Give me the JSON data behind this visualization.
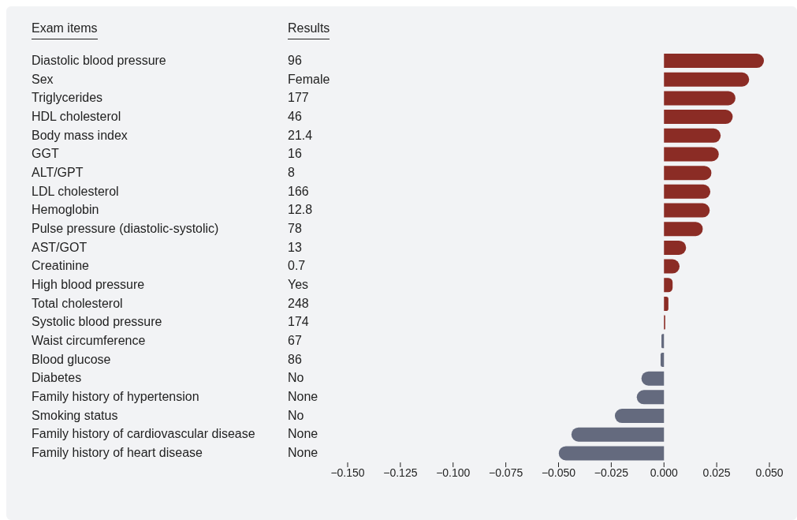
{
  "chart_data": {
    "type": "bar",
    "orientation": "horizontal",
    "ylabel": "Exam items",
    "y2label": "Results",
    "categories": [
      "Diastolic blood pressure",
      "Sex",
      "Triglycerides",
      "HDL cholesterol",
      "Body mass index",
      "GGT",
      "ALT/GPT",
      "LDL cholesterol",
      "Hemoglobin",
      "Pulse pressure (diastolic-systolic)",
      "AST/GOT",
      "Creatinine",
      "High blood pressure",
      "Total cholesterol",
      "Systolic blood pressure",
      "Waist circumference",
      "Blood glucose",
      "Diabetes",
      "Family history of hypertension",
      "Smoking status",
      "Family history of cardiovascular disease",
      "Family history of heart disease"
    ],
    "y2_categories": [
      "96",
      "Female",
      "177",
      "46",
      "21.4",
      "16",
      "8",
      "166",
      "12.8",
      "78",
      "13",
      "0.7",
      "Yes",
      "248",
      "174",
      "67",
      "86",
      "No",
      "None",
      "No",
      "None",
      "None"
    ],
    "values": [
      0.0474,
      0.0404,
      0.0339,
      0.0326,
      0.0269,
      0.026,
      0.0225,
      0.022,
      0.0217,
      0.0184,
      0.0105,
      0.0074,
      0.0041,
      0.0021,
      0.0006,
      -0.0012,
      -0.0016,
      -0.0107,
      -0.0129,
      -0.0233,
      -0.0439,
      -0.0499
    ],
    "colors": [
      "#8b2c25",
      "#8b2c25",
      "#8b2c25",
      "#8b2c25",
      "#8b2c25",
      "#8b2c25",
      "#8b2c25",
      "#8b2c25",
      "#8b2c25",
      "#8b2c25",
      "#8b2c25",
      "#8b2c25",
      "#8b2c25",
      "#8b2c25",
      "#8b2c25",
      "#646a7e",
      "#646a7e",
      "#646a7e",
      "#646a7e",
      "#646a7e",
      "#646a7e",
      "#646a7e"
    ],
    "xlim": [
      -0.15,
      0.05
    ],
    "xticks": [
      {
        "value": -0.15,
        "label": "−0.150"
      },
      {
        "value": -0.125,
        "label": "−0.125"
      },
      {
        "value": -0.1,
        "label": "−0.100"
      },
      {
        "value": -0.075,
        "label": "−0.075"
      },
      {
        "value": -0.05,
        "label": "−0.050"
      },
      {
        "value": -0.025,
        "label": "−0.025"
      },
      {
        "value": 0,
        "label": "0.000"
      },
      {
        "value": 0.025,
        "label": "0.025"
      },
      {
        "value": 0.05,
        "label": "0.050"
      }
    ]
  }
}
